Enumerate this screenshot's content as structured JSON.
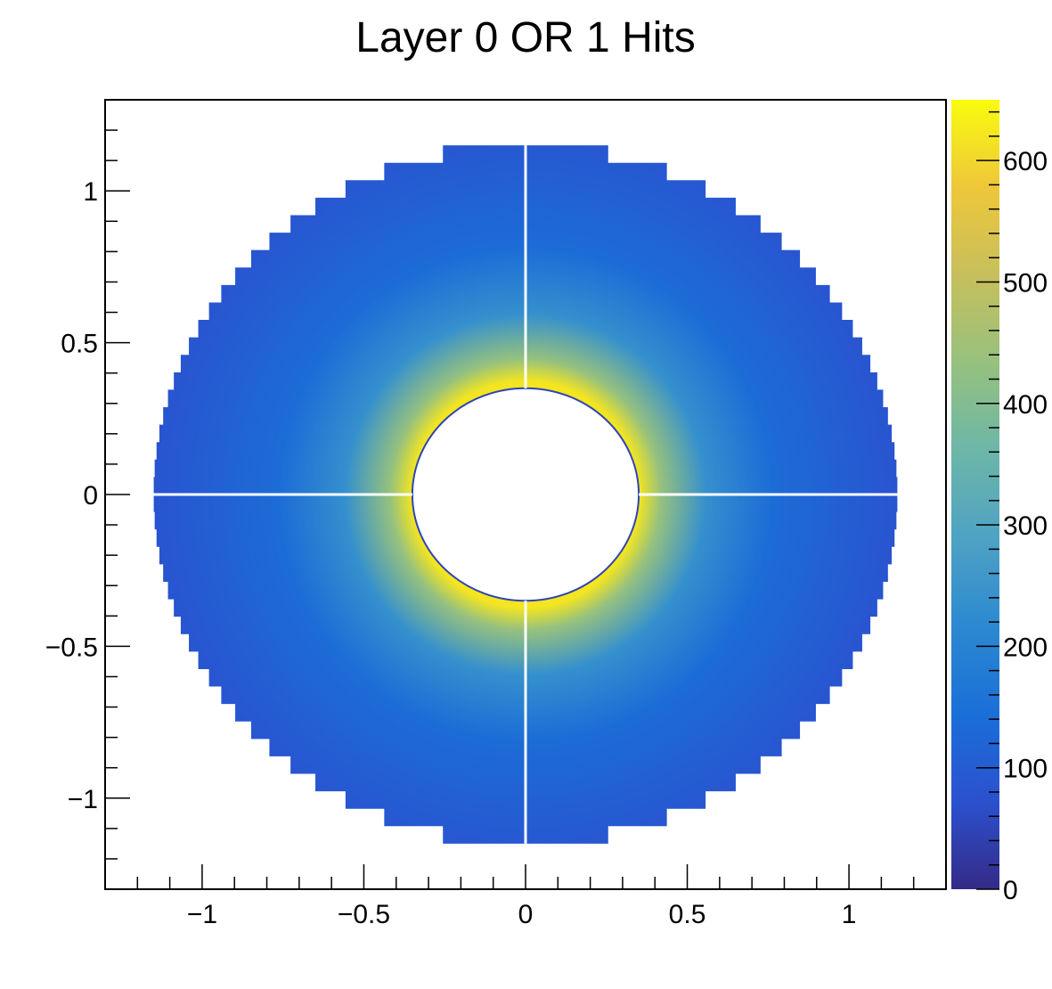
{
  "chart_data": {
    "type": "heatmap",
    "title": "Layer 0 OR 1 Hits",
    "xlabel": "",
    "ylabel": "",
    "xlim": [
      -1.3,
      1.3
    ],
    "ylim": [
      -1.3,
      1.3
    ],
    "x_ticks": [
      -1,
      -0.5,
      0,
      0.5,
      1
    ],
    "x_tick_labels": [
      "−1",
      "−0.5",
      "0",
      "0.5",
      "1"
    ],
    "y_ticks": [
      -1,
      -0.5,
      0,
      0.5,
      1
    ],
    "y_tick_labels": [
      "−1",
      "−0.5",
      "0",
      "0.5",
      "1"
    ],
    "grid": false,
    "colorbar": {
      "range": [
        0,
        650
      ],
      "ticks": [
        0,
        100,
        200,
        300,
        400,
        500,
        600
      ],
      "tick_labels": [
        "0",
        "100",
        "200",
        "300",
        "400",
        "500",
        "600"
      ],
      "palette": [
        "#352a87",
        "#2b51cf",
        "#1a6fd8",
        "#2c89d0",
        "#4ea2c4",
        "#6db6a8",
        "#96c17e",
        "#c7bf5c",
        "#eec73a",
        "#f9fb0e"
      ]
    },
    "detector": {
      "inner_radius": 0.35,
      "outer_radius": 1.15,
      "peak_value": 620,
      "edge_value": 80,
      "quadrant_gap_axes": [
        "x=0",
        "y=0"
      ]
    }
  }
}
